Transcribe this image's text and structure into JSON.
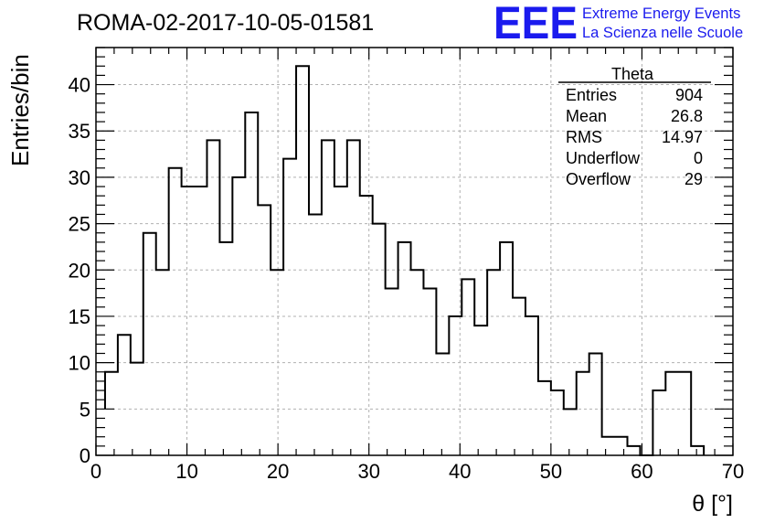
{
  "chart_data": {
    "type": "bar",
    "title": "ROMA-02-2017-10-05-01581",
    "xlabel": "θ [°]",
    "ylabel": "Entries/bin",
    "xlim": [
      0,
      70
    ],
    "ylim": [
      0,
      44
    ],
    "xticks": [
      0,
      10,
      20,
      30,
      40,
      50,
      60,
      70
    ],
    "yticks": [
      0,
      5,
      10,
      15,
      20,
      25,
      30,
      35,
      40
    ],
    "grid": true,
    "bin_width": 1.4,
    "x_start": 1.0,
    "values": [
      9,
      13,
      10,
      24,
      20,
      31,
      29,
      29,
      34,
      23,
      30,
      37,
      27,
      20,
      32,
      42,
      26,
      34,
      29,
      34,
      28,
      25,
      18,
      23,
      20,
      18,
      11,
      15,
      19,
      14,
      20,
      23,
      17,
      15,
      8,
      7,
      5,
      9,
      11,
      2,
      2,
      1,
      0,
      7,
      9,
      9,
      1
    ],
    "first_bin_partial": 5,
    "stats_box": {
      "title": "Theta",
      "rows": [
        {
          "label": "Entries",
          "value": "904"
        },
        {
          "label": "Mean",
          "value": "26.8"
        },
        {
          "label": "RMS",
          "value": "14.97"
        },
        {
          "label": "Underflow",
          "value": "0"
        },
        {
          "label": "Overflow",
          "value": "29"
        }
      ]
    }
  },
  "logo": {
    "text": "EEE",
    "line1": "Extreme Energy Events",
    "line2": "La Scienza nelle Scuole",
    "color": "#1a1aee"
  }
}
